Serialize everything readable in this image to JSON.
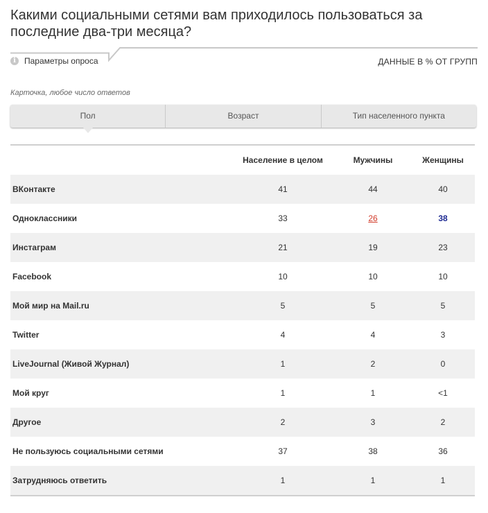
{
  "title": "Какими социальными сетями вам приходилось пользоваться за последние два-три месяца?",
  "params": {
    "label": "Параметры опроса",
    "info_icon": "info-icon",
    "data_note": "ДАННЫЕ В % ОТ ГРУПП"
  },
  "card_note": "Карточка, любое число ответов",
  "tabs": [
    {
      "label": "Пол",
      "active": true
    },
    {
      "label": "Возраст",
      "active": false
    },
    {
      "label": "Тип населенного пункта",
      "active": false
    }
  ],
  "table": {
    "columns": [
      "",
      "Население в целом",
      "Мужчины",
      "Женщины"
    ],
    "rows": [
      {
        "name": "ВКонтакте",
        "values": [
          "41",
          "44",
          "40"
        ]
      },
      {
        "name": "Одноклассники",
        "values": [
          "33",
          "26",
          "38"
        ],
        "highlight": {
          "1": "low",
          "2": "high"
        }
      },
      {
        "name": "Инстаграм",
        "values": [
          "21",
          "19",
          "23"
        ]
      },
      {
        "name": "Facebook",
        "values": [
          "10",
          "10",
          "10"
        ]
      },
      {
        "name": "Мой мир на Mail.ru",
        "values": [
          "5",
          "5",
          "5"
        ]
      },
      {
        "name": "Twitter",
        "values": [
          "4",
          "4",
          "3"
        ]
      },
      {
        "name": "LiveJournal (Живой Журнал)",
        "values": [
          "1",
          "2",
          "0"
        ]
      },
      {
        "name": "Мой круг",
        "values": [
          "1",
          "1",
          "<1"
        ]
      },
      {
        "name": "Другое",
        "values": [
          "2",
          "3",
          "2"
        ]
      },
      {
        "name": "Не пользуюсь социальными сетями",
        "values": [
          "37",
          "38",
          "36"
        ]
      },
      {
        "name": "Затрудняюсь ответить",
        "values": [
          "1",
          "1",
          "1"
        ]
      }
    ]
  },
  "colors": {
    "low": "#d23b2a",
    "high": "#1f2b93",
    "stripe": "#f0f0f0"
  }
}
